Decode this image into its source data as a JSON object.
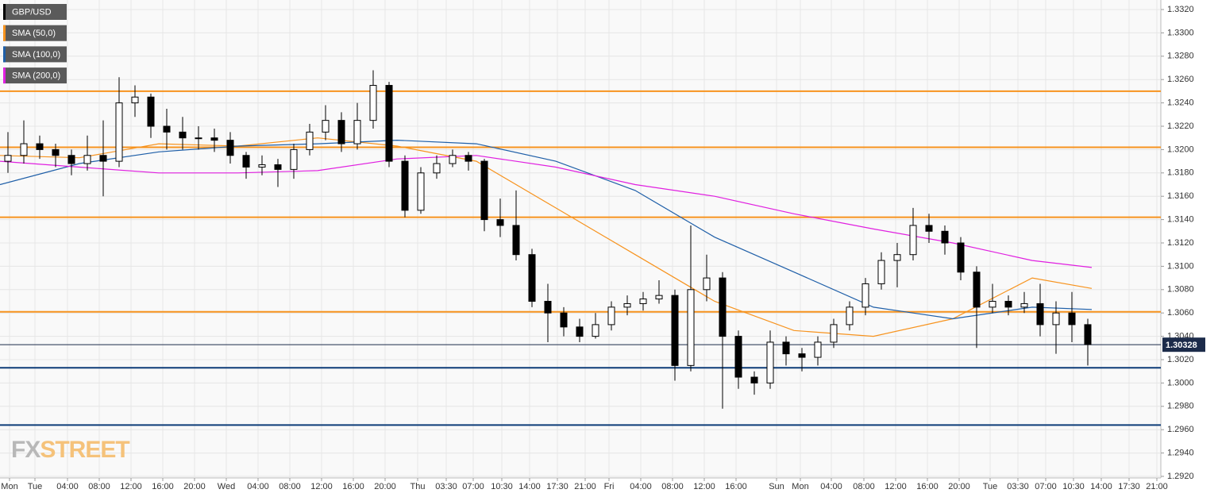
{
  "chart_data": {
    "type": "candlestick",
    "candles": {
      "name": "GBP/USD",
      "color": "#000000",
      "up_color": "#ffffff",
      "x": [
        1,
        3,
        5,
        7,
        9,
        11,
        13,
        15,
        17,
        19,
        21,
        23,
        25,
        27,
        29,
        31,
        33,
        35,
        37,
        39,
        41,
        43,
        45,
        47,
        49,
        51,
        53,
        55,
        57,
        59,
        61,
        63,
        65,
        67,
        69,
        71,
        73,
        75,
        77,
        79,
        81,
        83,
        85,
        87,
        89,
        91,
        93,
        95,
        97,
        99,
        101,
        103,
        105,
        107,
        109,
        111,
        113,
        115,
        117,
        119,
        121,
        123,
        125,
        127,
        129,
        131,
        133,
        135,
        137
      ],
      "open": [
        1.319,
        1.3195,
        1.3205,
        1.32,
        1.3195,
        1.3188,
        1.3195,
        1.319,
        1.324,
        1.3245,
        1.322,
        1.3215,
        1.321,
        1.321,
        1.3208,
        1.3195,
        1.3185,
        1.3187,
        1.3183,
        1.32,
        1.3215,
        1.3225,
        1.3205,
        1.3225,
        1.3255,
        1.319,
        1.3148,
        1.318,
        1.3188,
        1.3195,
        1.319,
        1.314,
        1.3135,
        1.311,
        1.307,
        1.306,
        1.3048,
        1.304,
        1.305,
        1.3065,
        1.3068,
        1.3072,
        1.3075,
        1.3015,
        1.308,
        1.309,
        1.304,
        1.3005,
        1.3,
        1.3035,
        1.3025,
        1.3022,
        1.3035,
        1.305,
        1.3065,
        1.3085,
        1.3105,
        1.311,
        1.3135,
        1.313,
        1.312,
        1.3095,
        1.3065,
        1.307,
        1.3065,
        1.3068,
        1.305,
        1.306,
        1.305
      ],
      "high": [
        1.3215,
        1.3225,
        1.3212,
        1.3205,
        1.32,
        1.3212,
        1.3225,
        1.3262,
        1.3255,
        1.3248,
        1.3235,
        1.3228,
        1.322,
        1.3218,
        1.3215,
        1.3198,
        1.3195,
        1.3192,
        1.3205,
        1.3222,
        1.3238,
        1.3232,
        1.324,
        1.3268,
        1.3258,
        1.3195,
        1.3185,
        1.3195,
        1.32,
        1.3198,
        1.3192,
        1.3158,
        1.3165,
        1.3115,
        1.3085,
        1.3065,
        1.3055,
        1.306,
        1.307,
        1.3075,
        1.3078,
        1.3088,
        1.308,
        1.3135,
        1.311,
        1.3095,
        1.3045,
        1.301,
        1.3045,
        1.304,
        1.303,
        1.304,
        1.3055,
        1.307,
        1.309,
        1.3112,
        1.312,
        1.315,
        1.3145,
        1.3135,
        1.3125,
        1.31,
        1.3085,
        1.3075,
        1.3078,
        1.3085,
        1.307,
        1.3078,
        1.3055
      ],
      "low": [
        1.318,
        1.3188,
        1.3192,
        1.3185,
        1.3178,
        1.3182,
        1.316,
        1.3185,
        1.3228,
        1.321,
        1.32,
        1.32,
        1.32,
        1.3198,
        1.3188,
        1.3175,
        1.3178,
        1.3168,
        1.3175,
        1.3195,
        1.3208,
        1.3198,
        1.32,
        1.3218,
        1.3185,
        1.3142,
        1.3145,
        1.3175,
        1.3185,
        1.3182,
        1.313,
        1.3125,
        1.3105,
        1.3065,
        1.3035,
        1.304,
        1.3035,
        1.3038,
        1.3045,
        1.3058,
        1.3062,
        1.3068,
        1.3002,
        1.301,
        1.307,
        1.2978,
        1.2995,
        1.299,
        1.2995,
        1.3015,
        1.301,
        1.3015,
        1.303,
        1.3045,
        1.3058,
        1.308,
        1.3082,
        1.3105,
        1.312,
        1.311,
        1.3088,
        1.303,
        1.306,
        1.3058,
        1.306,
        1.304,
        1.3025,
        1.3035,
        1.3015
      ],
      "close": [
        1.3195,
        1.3205,
        1.32,
        1.3195,
        1.3188,
        1.3195,
        1.319,
        1.324,
        1.3245,
        1.322,
        1.3215,
        1.321,
        1.321,
        1.3208,
        1.3195,
        1.3185,
        1.3187,
        1.3183,
        1.32,
        1.3215,
        1.3225,
        1.3205,
        1.3225,
        1.3255,
        1.319,
        1.3148,
        1.318,
        1.3188,
        1.3195,
        1.319,
        1.314,
        1.3135,
        1.311,
        1.307,
        1.306,
        1.3048,
        1.304,
        1.305,
        1.3065,
        1.3068,
        1.3072,
        1.3075,
        1.3015,
        1.308,
        1.309,
        1.304,
        1.3005,
        1.3,
        1.3035,
        1.3025,
        1.3022,
        1.3035,
        1.305,
        1.3065,
        1.3085,
        1.3105,
        1.311,
        1.3135,
        1.313,
        1.312,
        1.3095,
        1.3065,
        1.307,
        1.3065,
        1.3068,
        1.305,
        1.306,
        1.305,
        1.3033
      ]
    },
    "series": [
      {
        "name": "SMA (50,0)",
        "color": "#f7931e",
        "x": [
          0,
          10,
          20,
          30,
          40,
          50,
          60,
          70,
          80,
          90,
          100,
          110,
          120,
          130,
          137.5
        ],
        "values": [
          1.3195,
          1.3193,
          1.3205,
          1.3203,
          1.321,
          1.3203,
          1.319,
          1.315,
          1.311,
          1.307,
          1.3045,
          1.304,
          1.3055,
          1.309,
          1.3081
        ]
      },
      {
        "name": "SMA (100,0)",
        "color": "#1f5fa8",
        "x": [
          0,
          10,
          20,
          30,
          40,
          50,
          60,
          70,
          80,
          90,
          100,
          110,
          120,
          130,
          137.5
        ],
        "values": [
          1.317,
          1.3188,
          1.3198,
          1.3203,
          1.3205,
          1.3208,
          1.3205,
          1.319,
          1.3165,
          1.3125,
          1.3095,
          1.3065,
          1.3055,
          1.3065,
          1.3063
        ]
      },
      {
        "name": "SMA (200,0)",
        "color": "#e020e0",
        "x": [
          0,
          10,
          20,
          30,
          40,
          50,
          60,
          70,
          80,
          90,
          100,
          110,
          120,
          130,
          137.5
        ],
        "values": [
          1.319,
          1.3185,
          1.318,
          1.318,
          1.3182,
          1.3192,
          1.3195,
          1.3185,
          1.317,
          1.316,
          1.3145,
          1.3132,
          1.312,
          1.3105,
          1.3099
        ]
      }
    ],
    "levels": [
      {
        "value": 1.325,
        "color": "#f7931e"
      },
      {
        "value": 1.3202,
        "color": "#f7931e"
      },
      {
        "value": 1.3142,
        "color": "#f7931e"
      },
      {
        "value": 1.3061,
        "color": "#f7931e"
      },
      {
        "value": 1.3013,
        "color": "#0d3c78"
      },
      {
        "value": 1.2964,
        "color": "#0d3c78"
      }
    ],
    "last_price": 1.30328,
    "last_price_color": "#1c2b4a",
    "ylim": [
      1.292,
      1.332
    ],
    "yticks": [
      {
        "value": 1.292,
        "label": "1.2920"
      },
      {
        "value": 1.294,
        "label": "1.2940"
      },
      {
        "value": 1.296,
        "label": "1.2960"
      },
      {
        "value": 1.298,
        "label": "1.2980"
      },
      {
        "value": 1.3,
        "label": "1.3000"
      },
      {
        "value": 1.302,
        "label": "1.3020"
      },
      {
        "value": 1.304,
        "label": "1.3040"
      },
      {
        "value": 1.306,
        "label": "1.3060"
      },
      {
        "value": 1.308,
        "label": "1.3080"
      },
      {
        "value": 1.31,
        "label": "1.3100"
      },
      {
        "value": 1.312,
        "label": "1.3120"
      },
      {
        "value": 1.314,
        "label": "1.3140"
      },
      {
        "value": 1.316,
        "label": "1.3160"
      },
      {
        "value": 1.318,
        "label": "1.3180"
      },
      {
        "value": 1.32,
        "label": "1.3200"
      },
      {
        "value": 1.322,
        "label": "1.3220"
      },
      {
        "value": 1.324,
        "label": "1.3240"
      },
      {
        "value": 1.326,
        "label": "1.3260"
      },
      {
        "value": 1.328,
        "label": "1.3280"
      },
      {
        "value": 1.33,
        "label": "1.3300"
      },
      {
        "value": 1.332,
        "label": "1.3320"
      }
    ],
    "xlim": [
      0,
      146.2
    ],
    "xticks": [
      {
        "value": 1.2,
        "label": "Mon"
      },
      {
        "value": 4.4,
        "label": "Tue"
      },
      {
        "value": 8.5,
        "label": "04:00"
      },
      {
        "value": 12.5,
        "label": "08:00"
      },
      {
        "value": 16.5,
        "label": "12:00"
      },
      {
        "value": 20.5,
        "label": "16:00"
      },
      {
        "value": 24.5,
        "label": "20:00"
      },
      {
        "value": 28.5,
        "label": "Wed"
      },
      {
        "value": 32.5,
        "label": "04:00"
      },
      {
        "value": 36.5,
        "label": "08:00"
      },
      {
        "value": 40.5,
        "label": "12:00"
      },
      {
        "value": 44.5,
        "label": "16:00"
      },
      {
        "value": 48.5,
        "label": "20:00"
      },
      {
        "value": 52.6,
        "label": "Thu"
      },
      {
        "value": 56.2,
        "label": "03:30"
      },
      {
        "value": 59.6,
        "label": "07:00"
      },
      {
        "value": 63.2,
        "label": "10:30"
      },
      {
        "value": 66.7,
        "label": "14:00"
      },
      {
        "value": 70.2,
        "label": "17:30"
      },
      {
        "value": 73.7,
        "label": "21:00"
      },
      {
        "value": 76.7,
        "label": "Fri"
      },
      {
        "value": 80.7,
        "label": "04:00"
      },
      {
        "value": 84.7,
        "label": "08:00"
      },
      {
        "value": 88.7,
        "label": "12:00"
      },
      {
        "value": 92.7,
        "label": "16:00"
      },
      {
        "value": 97.8,
        "label": "Sun"
      },
      {
        "value": 100.8,
        "label": "Mon"
      },
      {
        "value": 104.7,
        "label": "04:00"
      },
      {
        "value": 108.8,
        "label": "08:00"
      },
      {
        "value": 112.8,
        "label": "12:00"
      },
      {
        "value": 116.8,
        "label": "16:00"
      },
      {
        "value": 120.8,
        "label": "20:00"
      },
      {
        "value": 124.7,
        "label": "Tue"
      },
      {
        "value": 128.2,
        "label": "03:30"
      },
      {
        "value": 131.7,
        "label": "07:00"
      },
      {
        "value": 135.2,
        "label": "10:30"
      },
      {
        "value": 138.7,
        "label": "14:00"
      },
      {
        "value": 142.2,
        "label": "17:30"
      },
      {
        "value": 145.7,
        "label": "21:00"
      }
    ],
    "grid": true,
    "watermark": [
      "FX",
      "STREET"
    ]
  }
}
